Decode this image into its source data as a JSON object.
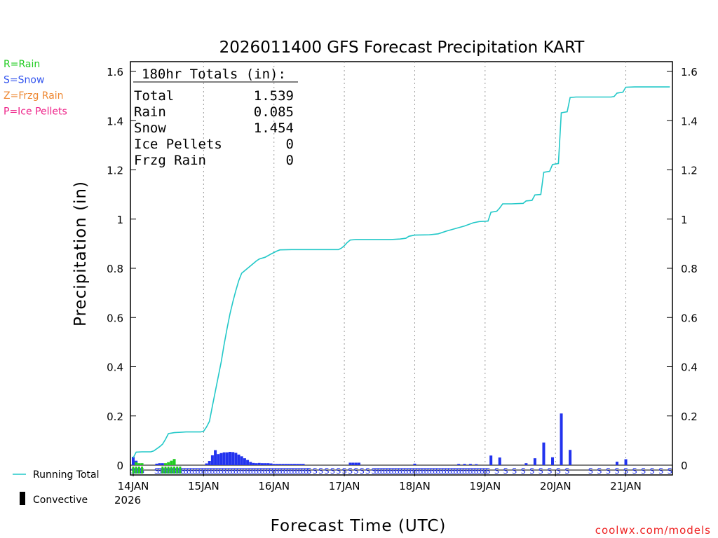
{
  "chart_data": {
    "type": "line",
    "title": "2026011400 GFS Forecast Precipitation KART",
    "xlabel": "Forecast Time (UTC)",
    "ylabel": "Precipitation (in)",
    "ylim": [
      0,
      1.7
    ],
    "yticks": [
      "0",
      "0.2",
      "0.4",
      "0.6",
      "0.8",
      "1",
      "1.2",
      "1.4",
      "1.6"
    ],
    "xlim_hours": [
      0,
      183
    ],
    "xticks": [
      {
        "hour": 0,
        "label": "14JAN"
      },
      {
        "hour": 24,
        "label": "15JAN"
      },
      {
        "hour": 48,
        "label": "16JAN"
      },
      {
        "hour": 72,
        "label": "17JAN"
      },
      {
        "hour": 96,
        "label": "18JAN"
      },
      {
        "hour": 120,
        "label": "19JAN"
      },
      {
        "hour": 144,
        "label": "20JAN"
      },
      {
        "hour": 168,
        "label": "21JAN"
      }
    ],
    "year_label": "2026",
    "legend_types": [
      {
        "label": "R=Rain",
        "color": "#22cc22"
      },
      {
        "label": "S=Snow",
        "color": "#3355ee"
      },
      {
        "label": "Z=Frzg Rain",
        "color": "#ee8833"
      },
      {
        "label": "P=Ice Pellets",
        "color": "#ee2288"
      }
    ],
    "legend_series": [
      {
        "label": "Running Total",
        "color": "#22c8c8"
      },
      {
        "label": "Convective",
        "color": "#000000"
      }
    ],
    "totals": {
      "header": "180hr Totals (in):",
      "rows": [
        {
          "label": "Total",
          "value": "1.539"
        },
        {
          "label": "Rain",
          "value": "0.085"
        },
        {
          "label": "Snow",
          "value": "1.454"
        },
        {
          "label": "Ice Pellets",
          "value": "0"
        },
        {
          "label": "Frzg Rain",
          "value": "0"
        }
      ]
    },
    "running_total": {
      "color": "#22c8c8",
      "points": [
        [
          0,
          0.03
        ],
        [
          1,
          0.053
        ],
        [
          3,
          0.054
        ],
        [
          6,
          0.054
        ],
        [
          7,
          0.058
        ],
        [
          9,
          0.075
        ],
        [
          10,
          0.085
        ],
        [
          11,
          0.105
        ],
        [
          12,
          0.128
        ],
        [
          14,
          0.132
        ],
        [
          18,
          0.135
        ],
        [
          23,
          0.135
        ],
        [
          24,
          0.138
        ],
        [
          25,
          0.155
        ],
        [
          26,
          0.178
        ],
        [
          27,
          0.24
        ],
        [
          28,
          0.3
        ],
        [
          29,
          0.36
        ],
        [
          30,
          0.42
        ],
        [
          31,
          0.49
        ],
        [
          32,
          0.555
        ],
        [
          33,
          0.615
        ],
        [
          34,
          0.665
        ],
        [
          35,
          0.71
        ],
        [
          36,
          0.75
        ],
        [
          37,
          0.78
        ],
        [
          38,
          0.79
        ],
        [
          39,
          0.8
        ],
        [
          40,
          0.81
        ],
        [
          41,
          0.82
        ],
        [
          42,
          0.83
        ],
        [
          43,
          0.838
        ],
        [
          45,
          0.845
        ],
        [
          47,
          0.858
        ],
        [
          49,
          0.87
        ],
        [
          50,
          0.875
        ],
        [
          54,
          0.876
        ],
        [
          70,
          0.876
        ],
        [
          71,
          0.882
        ],
        [
          72,
          0.892
        ],
        [
          73,
          0.905
        ],
        [
          74,
          0.915
        ],
        [
          76,
          0.917
        ],
        [
          88,
          0.917
        ],
        [
          91,
          0.919
        ],
        [
          93,
          0.922
        ],
        [
          94,
          0.93
        ],
        [
          96,
          0.935
        ],
        [
          101,
          0.936
        ],
        [
          104,
          0.94
        ],
        [
          107,
          0.952
        ],
        [
          110,
          0.962
        ],
        [
          113,
          0.972
        ],
        [
          116,
          0.985
        ],
        [
          118,
          0.99
        ],
        [
          121,
          0.992
        ],
        [
          122,
          1.028
        ],
        [
          124,
          1.032
        ],
        [
          125,
          1.045
        ],
        [
          126,
          1.062
        ],
        [
          129,
          1.062
        ],
        [
          133,
          1.064
        ],
        [
          134,
          1.074
        ],
        [
          136,
          1.076
        ],
        [
          137,
          1.098
        ],
        [
          139,
          1.1
        ],
        [
          140,
          1.19
        ],
        [
          142,
          1.194
        ],
        [
          143,
          1.222
        ],
        [
          145,
          1.226
        ],
        [
          146,
          1.432
        ],
        [
          148,
          1.436
        ],
        [
          149,
          1.494
        ],
        [
          151,
          1.496
        ],
        [
          163,
          1.496
        ],
        [
          164,
          1.498
        ],
        [
          165,
          1.512
        ],
        [
          167,
          1.516
        ],
        [
          168,
          1.536
        ],
        [
          171,
          1.537
        ],
        [
          183,
          1.537
        ]
      ]
    },
    "snow_bars": {
      "color": "#2233ee",
      "values": [
        [
          0,
          0.034
        ],
        [
          1,
          0.018
        ],
        [
          8,
          0.006
        ],
        [
          9,
          0.008
        ],
        [
          10,
          0.008
        ],
        [
          25,
          0.007
        ],
        [
          26,
          0.017
        ],
        [
          27,
          0.04
        ],
        [
          28,
          0.061
        ],
        [
          29,
          0.045
        ],
        [
          30,
          0.049
        ],
        [
          31,
          0.052
        ],
        [
          32,
          0.052
        ],
        [
          33,
          0.054
        ],
        [
          34,
          0.053
        ],
        [
          35,
          0.05
        ],
        [
          36,
          0.043
        ],
        [
          37,
          0.036
        ],
        [
          38,
          0.028
        ],
        [
          39,
          0.021
        ],
        [
          40,
          0.013
        ],
        [
          41,
          0.009
        ],
        [
          42,
          0.008
        ],
        [
          43,
          0.009
        ],
        [
          44,
          0.008
        ],
        [
          45,
          0.008
        ],
        [
          46,
          0.008
        ],
        [
          47,
          0.007
        ],
        [
          48,
          0.005
        ],
        [
          49,
          0.005
        ],
        [
          50,
          0.005
        ],
        [
          51,
          0.005
        ],
        [
          52,
          0.005
        ],
        [
          53,
          0.005
        ],
        [
          54,
          0.005
        ],
        [
          55,
          0.005
        ],
        [
          56,
          0.005
        ],
        [
          57,
          0.005
        ],
        [
          58,
          0.005
        ],
        [
          74,
          0.01
        ],
        [
          75,
          0.01
        ],
        [
          76,
          0.01
        ],
        [
          77,
          0.01
        ],
        [
          96,
          0.006
        ],
        [
          111,
          0.005
        ],
        [
          113,
          0.005
        ],
        [
          115,
          0.005
        ],
        [
          117,
          0.004
        ],
        [
          122,
          0.039
        ],
        [
          125,
          0.031
        ],
        [
          134,
          0.008
        ],
        [
          137,
          0.028
        ],
        [
          140,
          0.092
        ],
        [
          143,
          0.032
        ],
        [
          146,
          0.21
        ],
        [
          149,
          0.062
        ],
        [
          165,
          0.014
        ],
        [
          168,
          0.024
        ]
      ]
    },
    "rain_bars": {
      "color": "#22cc22",
      "values": [
        [
          1,
          0.012
        ],
        [
          2,
          0.008
        ],
        [
          3,
          0.008
        ],
        [
          11,
          0.008
        ],
        [
          12,
          0.012
        ],
        [
          13,
          0.018
        ],
        [
          14,
          0.025
        ]
      ]
    },
    "type_marker_text": "S"
  },
  "credit": "coolwx.com/models"
}
